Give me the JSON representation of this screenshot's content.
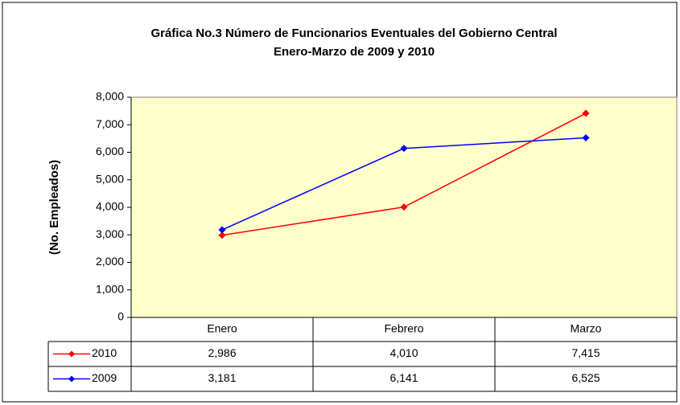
{
  "chart_data": {
    "type": "line",
    "title": "Gráfica No.3 Número de Funcionarios Eventuales del Gobierno Central",
    "subtitle": "Enero-Marzo de 2009 y 2010",
    "y_label": "(No. Empleados)",
    "categories": [
      "Enero",
      "Febrero",
      "Marzo"
    ],
    "series": [
      {
        "name": "2010",
        "color": "#ff0000",
        "values": [
          2986,
          4010,
          7415
        ],
        "value_labels": [
          "2,986",
          "4,010",
          "7,415"
        ]
      },
      {
        "name": "2009",
        "color": "#0000ff",
        "values": [
          3181,
          6141,
          6525
        ],
        "value_labels": [
          "3,181",
          "6,141",
          "6,525"
        ]
      }
    ],
    "ylim": [
      0,
      8000
    ],
    "yticks": [
      0,
      {
        "value": 1000,
        "label": "1,000"
      },
      {
        "value": 2000,
        "label": "2,000"
      },
      {
        "value": 3000,
        "label": "3,000"
      },
      {
        "value": 4000,
        "label": "4,000"
      },
      {
        "value": 5000,
        "label": "5,000"
      },
      {
        "value": 6000,
        "label": "6,000"
      },
      {
        "value": 7000,
        "label": "7,000"
      },
      {
        "value": 8000,
        "label": "8,000"
      }
    ],
    "plot_background": "#ffffcc",
    "grid": false
  }
}
